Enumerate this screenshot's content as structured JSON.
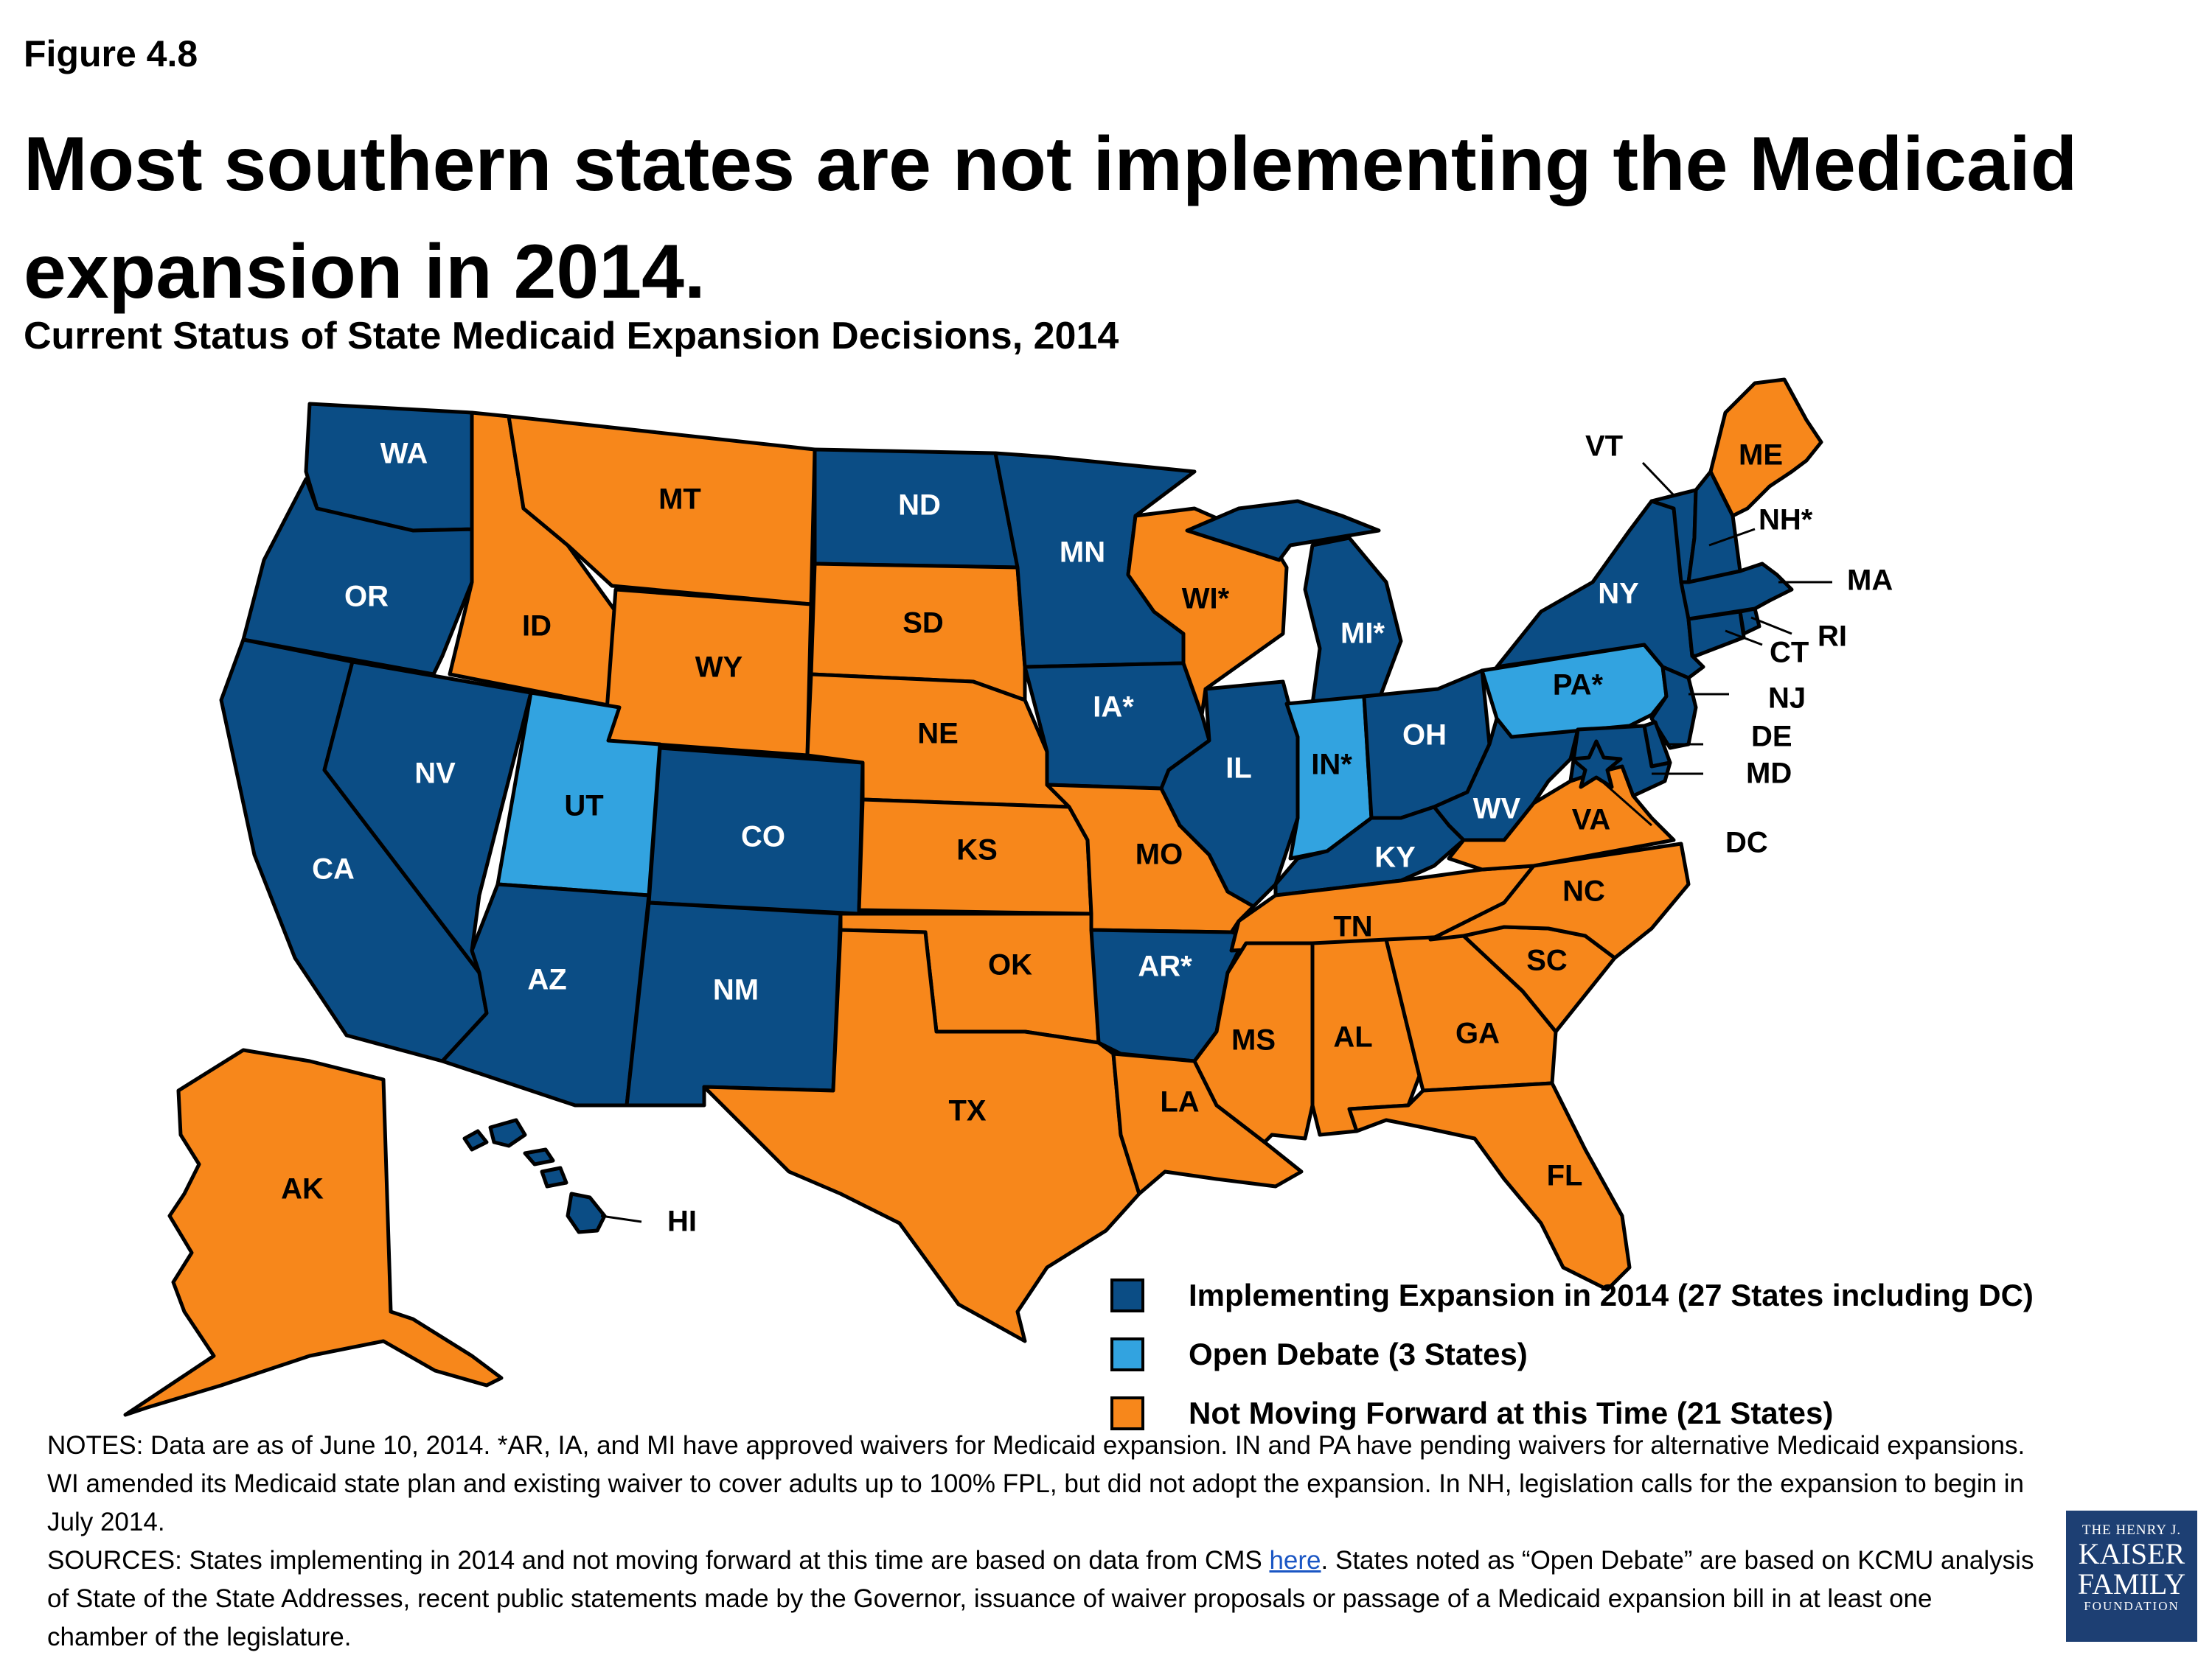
{
  "figure_label": "Figure 4.8",
  "title": "Most southern states are not implementing the Medicaid expansion in 2014.",
  "subtitle": "Current Status of State Medicaid Expansion Decisions, 2014",
  "colors": {
    "implementing": "#0b4d85",
    "open_debate": "#32a3e0",
    "not_moving": "#f7871b"
  },
  "legend": [
    {
      "key": "implementing",
      "label": "Implementing Expansion in 2014 (27 States including DC)"
    },
    {
      "key": "open_debate",
      "label": "Open Debate (3 States)"
    },
    {
      "key": "not_moving",
      "label": "Not Moving Forward at this Time (21 States)"
    }
  ],
  "states": {
    "WA": "implementing",
    "OR": "implementing",
    "CA": "implementing",
    "NV": "implementing",
    "ID": "not_moving",
    "MT": "not_moving",
    "WY": "not_moving",
    "UT": "open_debate",
    "AZ": "implementing",
    "CO": "implementing",
    "NM": "implementing",
    "ND": "implementing",
    "SD": "not_moving",
    "NE": "not_moving",
    "KS": "not_moving",
    "OK": "not_moving",
    "TX": "not_moving",
    "MN": "implementing",
    "IA": "implementing",
    "MO": "not_moving",
    "AR": "implementing",
    "LA": "not_moving",
    "WI": "not_moving",
    "IL": "implementing",
    "MI": "implementing",
    "IN": "open_debate",
    "OH": "implementing",
    "KY": "implementing",
    "TN": "not_moving",
    "MS": "not_moving",
    "AL": "not_moving",
    "GA": "not_moving",
    "FL": "not_moving",
    "SC": "not_moving",
    "NC": "not_moving",
    "VA": "not_moving",
    "WV": "implementing",
    "PA": "open_debate",
    "NY": "implementing",
    "NJ": "implementing",
    "DE": "implementing",
    "MD": "implementing",
    "DC": "implementing",
    "CT": "implementing",
    "RI": "implementing",
    "MA": "implementing",
    "VT": "implementing",
    "NH": "implementing",
    "ME": "not_moving",
    "AK": "not_moving",
    "HI": "implementing"
  },
  "labels": {
    "WA": "WA",
    "OR": "OR",
    "CA": "CA",
    "NV": "NV",
    "ID": "ID",
    "MT": "MT",
    "WY": "WY",
    "UT": "UT",
    "AZ": "AZ",
    "CO": "CO",
    "NM": "NM",
    "ND": "ND",
    "SD": "SD",
    "NE": "NE",
    "KS": "KS",
    "OK": "OK",
    "TX": "TX",
    "MN": "MN",
    "IA": "IA*",
    "MO": "MO",
    "AR": "AR*",
    "LA": "LA",
    "WI": "WI*",
    "IL": "IL",
    "MI": "MI*",
    "IN": "IN*",
    "OH": "OH",
    "KY": "KY",
    "TN": "TN",
    "MS": "MS",
    "AL": "AL",
    "GA": "GA",
    "FL": "FL",
    "SC": "SC",
    "NC": "NC",
    "VA": "VA",
    "WV": "WV",
    "PA": "PA*",
    "NY": "NY",
    "ME": "ME",
    "AK": "AK",
    "VT": "VT",
    "NH": "NH*",
    "MA": "MA",
    "RI": "RI",
    "CT": "CT",
    "NJ": "NJ",
    "DE": "DE",
    "MD": "MD",
    "DC": "DC",
    "HI": "HI"
  },
  "notes": {
    "line1": "NOTES: Data are as of June 10, 2014. *AR, IA, and MI have approved waivers for Medicaid expansion. IN and PA have pending waivers for alternative Medicaid expansions. WI amended its Medicaid state plan and existing waiver to cover adults up to 100% FPL, but did not adopt the expansion. In NH, legislation calls for the expansion to begin in July 2014.",
    "sources_before": "SOURCES: States implementing in 2014 and not moving forward at this time are based on data from CMS ",
    "sources_link": "here",
    "sources_after": ". States noted as “Open Debate” are based on KCMU analysis of State of the State Addresses, recent public statements made by the Governor, issuance of waiver proposals or passage of a Medicaid expansion bill in at least one chamber of the legislature."
  },
  "logo": {
    "line1": "THE HENRY J.",
    "line2": "KAISER",
    "line3": "FAMILY",
    "line4": "FOUNDATION"
  }
}
